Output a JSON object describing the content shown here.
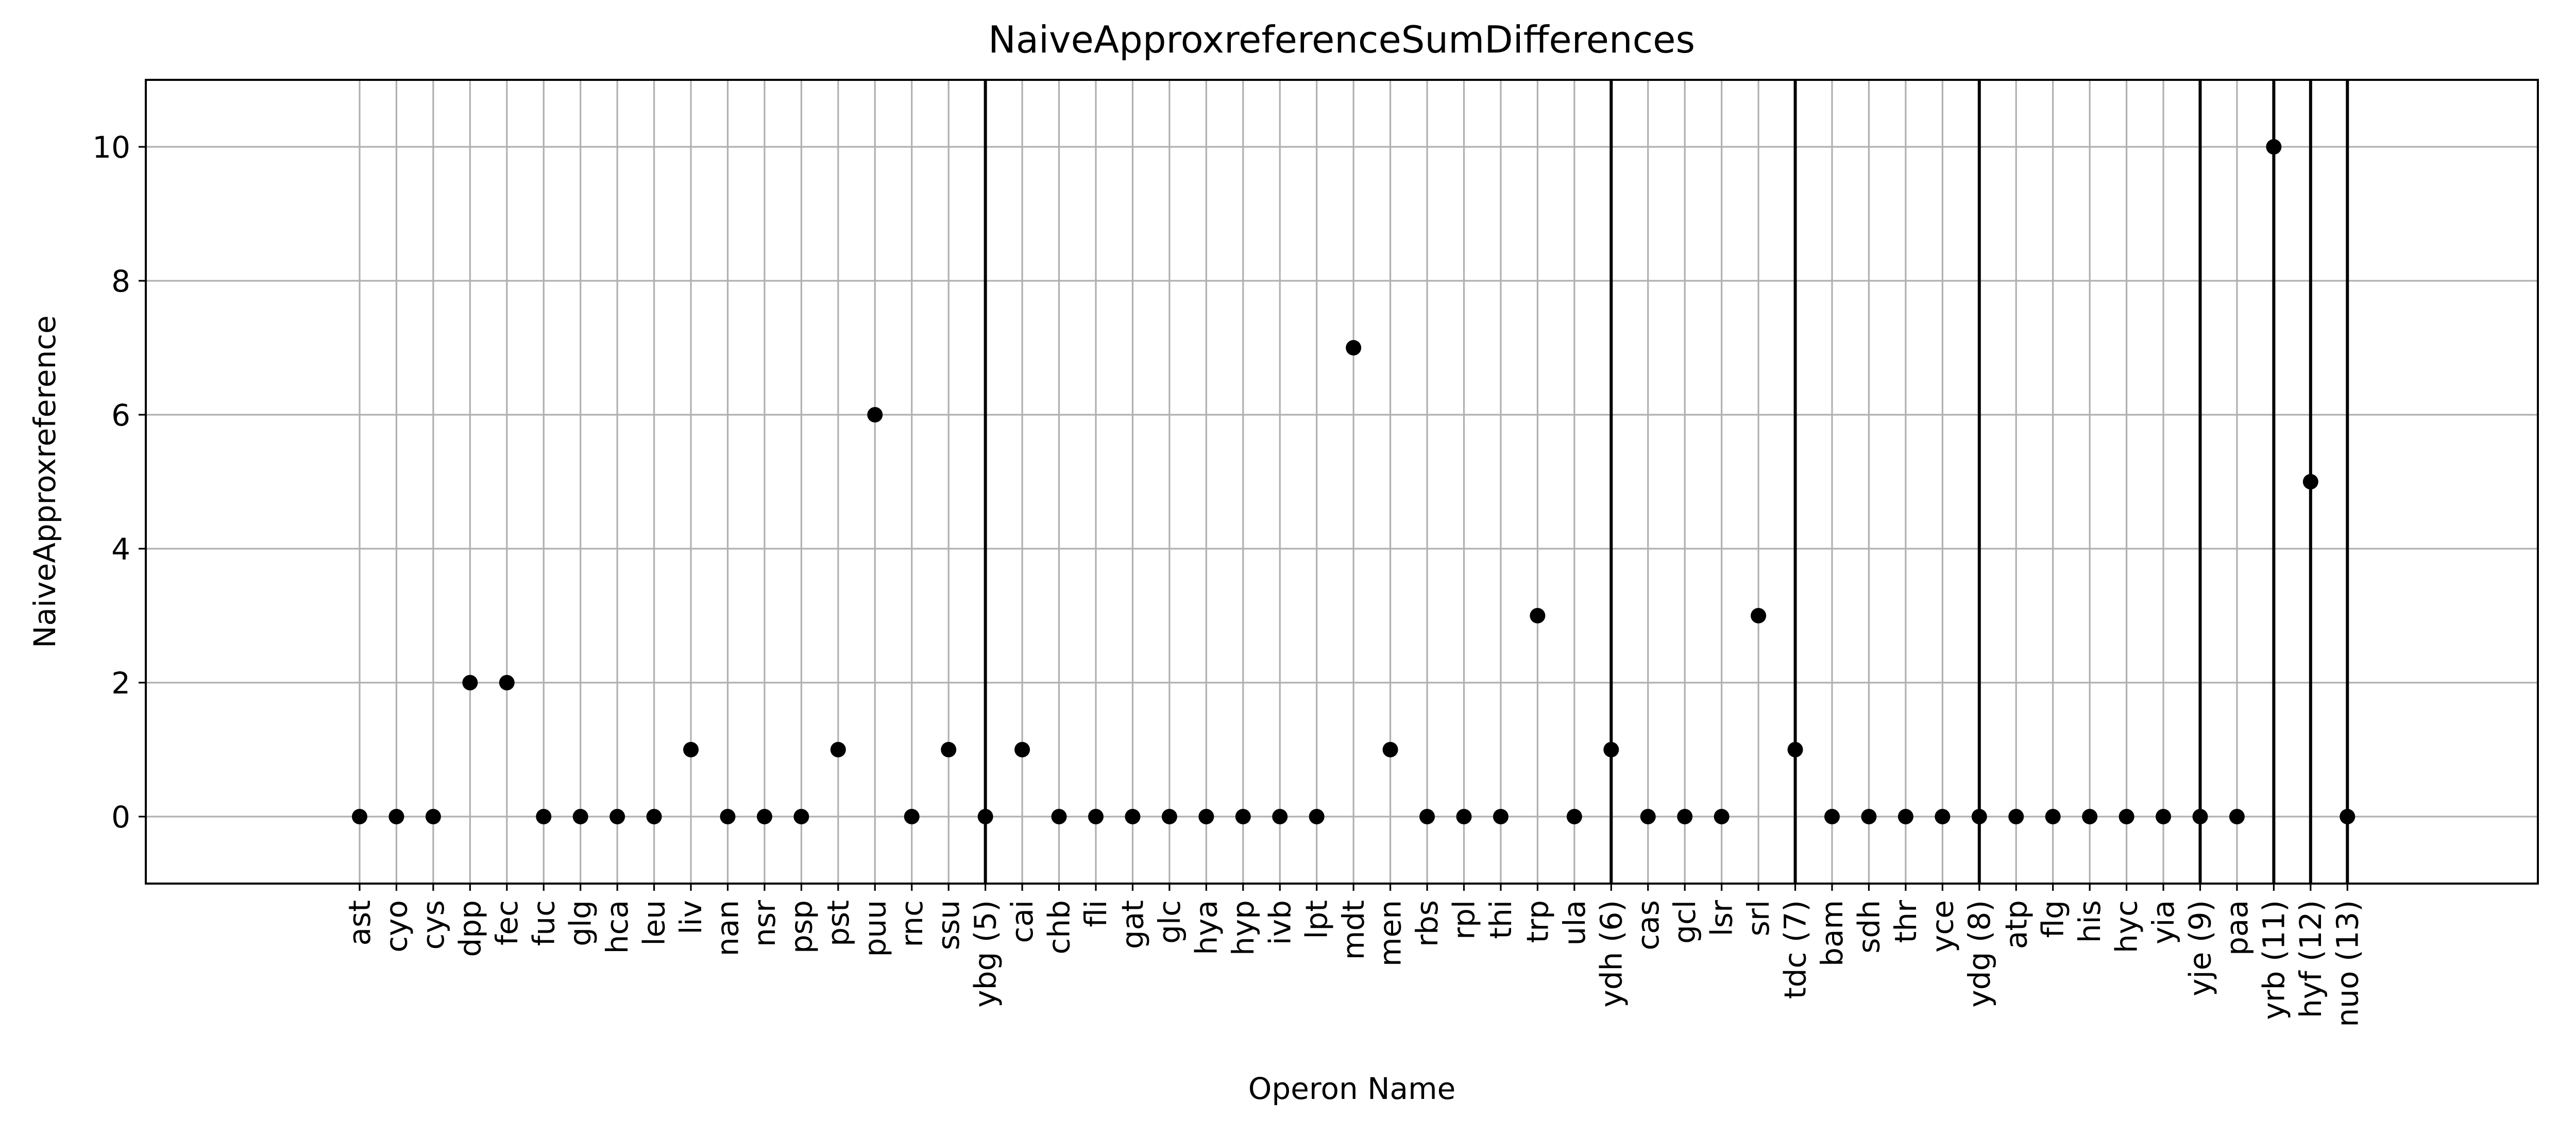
{
  "chart_data": {
    "type": "scatter",
    "title": "NaiveApproxreferenceSumDifferences",
    "xlabel": "Operon Name",
    "ylabel": "NaiveApproxreference",
    "ylim": [
      -1,
      11
    ],
    "yticks": [
      "0",
      "2",
      "4",
      "6",
      "8",
      "10"
    ],
    "grid": true,
    "marker_color": "#000000",
    "categories": [
      "ast",
      "cyo",
      "cys",
      "dpp",
      "fec",
      "fuc",
      "glg",
      "hca",
      "leu",
      "liv",
      "nan",
      "nsr",
      "psp",
      "pst",
      "puu",
      "rnc",
      "ssu",
      "ybg (5)",
      "cai",
      "chb",
      "fli",
      "gat",
      "glc",
      "hya",
      "hyp",
      "ivb",
      "lpt",
      "mdt",
      "men",
      "rbs",
      "rpl",
      "thi",
      "trp",
      "ula",
      "ydh (6)",
      "cas",
      "gcl",
      "lsr",
      "srl",
      "tdc (7)",
      "bam",
      "sdh",
      "thr",
      "yce",
      "ydg (8)",
      "atp",
      "flg",
      "his",
      "hyc",
      "yia",
      "yje (9)",
      "paa",
      "yrb (11)",
      "hyf (12)",
      "nuo (13)"
    ],
    "values": [
      0,
      0,
      0,
      2,
      2,
      0,
      0,
      0,
      0,
      1,
      0,
      0,
      0,
      1,
      6,
      0,
      1,
      0,
      1,
      0,
      0,
      0,
      0,
      0,
      0,
      0,
      0,
      7,
      1,
      0,
      0,
      0,
      3,
      0,
      1,
      0,
      0,
      0,
      3,
      1,
      0,
      0,
      0,
      0,
      0,
      0,
      0,
      0,
      0,
      0,
      0,
      0,
      10,
      5,
      0
    ],
    "vertical_lines_at": [
      "ybg (5)",
      "ydh (6)",
      "tdc (7)",
      "ydg (8)",
      "yje (9)",
      "yrb (11)",
      "hyf (12)",
      "nuo (13)"
    ]
  }
}
